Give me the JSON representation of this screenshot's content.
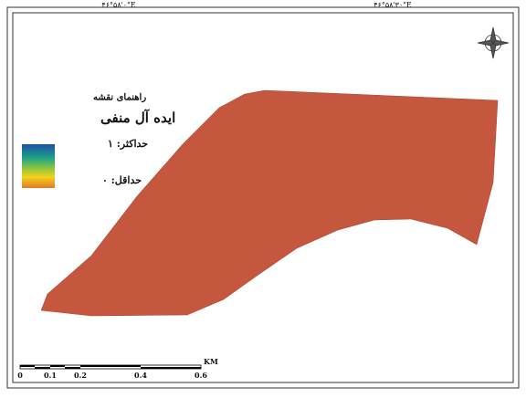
{
  "coordinates": {
    "top_left": "۴۶°۵۸'۰\"E",
    "top_right": "۴۶°۵۸'۳۰\"E"
  },
  "legend": {
    "title": "راهنمای نقشه",
    "layer": "ایده آل منفی",
    "max_label": "حداکثر: ۱",
    "min_label": "حداقل: ۰"
  },
  "scale_bar": {
    "unit": "KM",
    "labels": [
      "0",
      "0.1",
      "0.2",
      "0.4",
      "0.6"
    ]
  }
}
